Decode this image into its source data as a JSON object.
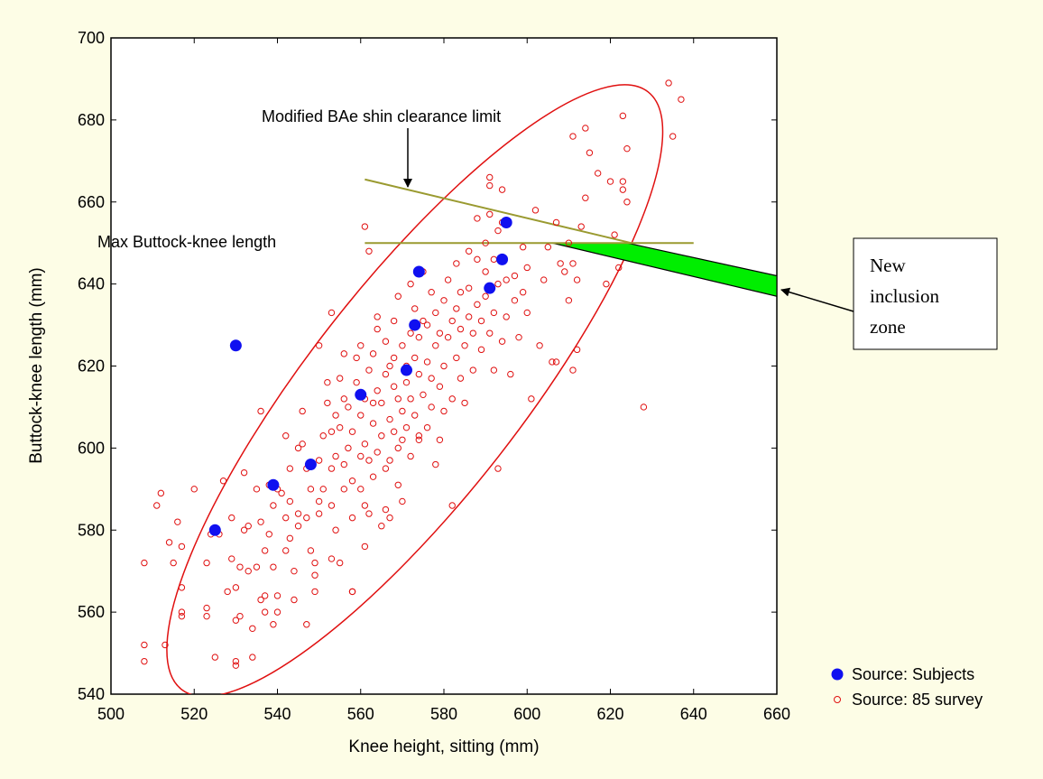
{
  "colors": {
    "background": "#fdfde6",
    "subjects": "#1010f0",
    "survey": "#e01010",
    "ellipse": "#e01010",
    "limit_lines": "#9a9a30",
    "inclusion_zone": "#00ee00"
  },
  "chart_data": {
    "type": "scatter",
    "title": "",
    "xlabel": "Knee height, sitting (mm)",
    "ylabel": "Buttock-knee length (mm)",
    "xlim": [
      500,
      660
    ],
    "ylim": [
      540,
      700
    ],
    "xticks": [
      500,
      520,
      540,
      560,
      580,
      600,
      620,
      640,
      660
    ],
    "yticks": [
      540,
      560,
      580,
      600,
      620,
      640,
      660,
      680,
      700
    ],
    "grid": false,
    "legend_position": "bottom-right",
    "series": [
      {
        "name": "Source: Subjects",
        "marker": "filled-circle",
        "points": [
          [
            525,
            580
          ],
          [
            530,
            625
          ],
          [
            539,
            591
          ],
          [
            548,
            596
          ],
          [
            560,
            613
          ],
          [
            571,
            619
          ],
          [
            573,
            630
          ],
          [
            574,
            643
          ],
          [
            591,
            639
          ],
          [
            594,
            646
          ],
          [
            595,
            655
          ]
        ]
      },
      {
        "name": "Source: 85 survey",
        "marker": "open-circle",
        "points": [
          [
            508,
            572
          ],
          [
            508,
            552
          ],
          [
            508,
            548
          ],
          [
            511,
            586
          ],
          [
            512,
            589
          ],
          [
            513,
            552
          ],
          [
            514,
            577
          ],
          [
            515,
            572
          ],
          [
            516,
            582
          ],
          [
            517,
            576
          ],
          [
            517,
            560
          ],
          [
            517,
            559
          ],
          [
            517,
            566
          ],
          [
            520,
            590
          ],
          [
            523,
            572
          ],
          [
            523,
            561
          ],
          [
            523,
            559
          ],
          [
            524,
            579
          ],
          [
            525,
            549
          ],
          [
            526,
            579
          ],
          [
            527,
            592
          ],
          [
            528,
            565
          ],
          [
            529,
            573
          ],
          [
            529,
            583
          ],
          [
            530,
            547
          ],
          [
            530,
            548
          ],
          [
            530,
            566
          ],
          [
            531,
            571
          ],
          [
            531,
            559
          ],
          [
            532,
            580
          ],
          [
            532,
            594
          ],
          [
            533,
            570
          ],
          [
            533,
            581
          ],
          [
            534,
            556
          ],
          [
            534,
            549
          ],
          [
            535,
            571
          ],
          [
            535,
            590
          ],
          [
            536,
            609
          ],
          [
            536,
            582
          ],
          [
            537,
            575
          ],
          [
            537,
            560
          ],
          [
            537,
            564
          ],
          [
            538,
            579
          ],
          [
            538,
            591
          ],
          [
            539,
            586
          ],
          [
            539,
            571
          ],
          [
            540,
            564
          ],
          [
            540,
            560
          ],
          [
            540,
            590
          ],
          [
            541,
            589
          ],
          [
            542,
            583
          ],
          [
            542,
            575
          ],
          [
            542,
            603
          ],
          [
            543,
            578
          ],
          [
            543,
            587
          ],
          [
            543,
            595
          ],
          [
            544,
            570
          ],
          [
            544,
            563
          ],
          [
            545,
            600
          ],
          [
            545,
            581
          ],
          [
            545,
            584
          ],
          [
            546,
            601
          ],
          [
            546,
            609
          ],
          [
            547,
            595
          ],
          [
            547,
            583
          ],
          [
            548,
            575
          ],
          [
            548,
            590
          ],
          [
            549,
            572
          ],
          [
            549,
            565
          ],
          [
            549,
            569
          ],
          [
            550,
            584
          ],
          [
            550,
            587
          ],
          [
            550,
            597
          ],
          [
            550,
            625
          ],
          [
            551,
            603
          ],
          [
            551,
            590
          ],
          [
            552,
            611
          ],
          [
            552,
            616
          ],
          [
            553,
            586
          ],
          [
            553,
            595
          ],
          [
            553,
            604
          ],
          [
            553,
            573
          ],
          [
            554,
            580
          ],
          [
            554,
            598
          ],
          [
            554,
            608
          ],
          [
            555,
            572
          ],
          [
            555,
            605
          ],
          [
            555,
            617
          ],
          [
            556,
            596
          ],
          [
            556,
            590
          ],
          [
            556,
            623
          ],
          [
            556,
            612
          ],
          [
            557,
            600
          ],
          [
            557,
            610
          ],
          [
            558,
            583
          ],
          [
            558,
            592
          ],
          [
            558,
            565
          ],
          [
            558,
            604
          ],
          [
            559,
            616
          ],
          [
            559,
            622
          ],
          [
            560,
            598
          ],
          [
            560,
            608
          ],
          [
            560,
            625
          ],
          [
            560,
            590
          ],
          [
            561,
            576
          ],
          [
            561,
            586
          ],
          [
            561,
            601
          ],
          [
            561,
            612
          ],
          [
            562,
            619
          ],
          [
            562,
            597
          ],
          [
            562,
            584
          ],
          [
            563,
            606
          ],
          [
            563,
            593
          ],
          [
            563,
            623
          ],
          [
            564,
            614
          ],
          [
            564,
            599
          ],
          [
            564,
            629
          ],
          [
            564,
            632
          ],
          [
            565,
            581
          ],
          [
            565,
            611
          ],
          [
            565,
            603
          ],
          [
            566,
            595
          ],
          [
            566,
            618
          ],
          [
            566,
            585
          ],
          [
            566,
            626
          ],
          [
            567,
            607
          ],
          [
            567,
            620
          ],
          [
            567,
            597
          ],
          [
            567,
            583
          ],
          [
            568,
            615
          ],
          [
            568,
            604
          ],
          [
            568,
            631
          ],
          [
            568,
            622
          ],
          [
            569,
            600
          ],
          [
            569,
            612
          ],
          [
            569,
            591
          ],
          [
            569,
            637
          ],
          [
            570,
            609
          ],
          [
            570,
            625
          ],
          [
            570,
            602
          ],
          [
            570,
            587
          ],
          [
            571,
            616
          ],
          [
            571,
            605
          ],
          [
            571,
            620
          ],
          [
            572,
            612
          ],
          [
            572,
            598
          ],
          [
            572,
            628
          ],
          [
            572,
            640
          ],
          [
            573,
            608
          ],
          [
            573,
            622
          ],
          [
            573,
            634
          ],
          [
            574,
            618
          ],
          [
            574,
            627
          ],
          [
            574,
            602
          ],
          [
            575,
            613
          ],
          [
            575,
            631
          ],
          [
            575,
            643
          ],
          [
            576,
            605
          ],
          [
            576,
            621
          ],
          [
            576,
            630
          ],
          [
            577,
            610
          ],
          [
            577,
            617
          ],
          [
            577,
            638
          ],
          [
            578,
            596
          ],
          [
            578,
            625
          ],
          [
            578,
            633
          ],
          [
            579,
            615
          ],
          [
            579,
            628
          ],
          [
            579,
            602
          ],
          [
            580,
            620
          ],
          [
            580,
            636
          ],
          [
            580,
            609
          ],
          [
            581,
            627
          ],
          [
            581,
            641
          ],
          [
            582,
            612
          ],
          [
            582,
            631
          ],
          [
            582,
            586
          ],
          [
            583,
            622
          ],
          [
            583,
            634
          ],
          [
            583,
            645
          ],
          [
            584,
            617
          ],
          [
            584,
            629
          ],
          [
            584,
            638
          ],
          [
            585,
            625
          ],
          [
            585,
            611
          ],
          [
            586,
            632
          ],
          [
            586,
            639
          ],
          [
            586,
            648
          ],
          [
            587,
            619
          ],
          [
            587,
            628
          ],
          [
            588,
            635
          ],
          [
            588,
            646
          ],
          [
            588,
            656
          ],
          [
            589,
            631
          ],
          [
            589,
            624
          ],
          [
            590,
            650
          ],
          [
            590,
            643
          ],
          [
            590,
            637
          ],
          [
            591,
            628
          ],
          [
            591,
            657
          ],
          [
            591,
            666
          ],
          [
            592,
            619
          ],
          [
            592,
            633
          ],
          [
            592,
            646
          ],
          [
            593,
            640
          ],
          [
            593,
            653
          ],
          [
            594,
            626
          ],
          [
            594,
            655
          ],
          [
            594,
            663
          ],
          [
            595,
            632
          ],
          [
            595,
            641
          ],
          [
            596,
            618
          ],
          [
            597,
            642
          ],
          [
            597,
            636
          ],
          [
            598,
            627
          ],
          [
            599,
            638
          ],
          [
            599,
            649
          ],
          [
            600,
            633
          ],
          [
            600,
            644
          ],
          [
            601,
            612
          ],
          [
            602,
            658
          ],
          [
            603,
            625
          ],
          [
            604,
            641
          ],
          [
            605,
            649
          ],
          [
            606,
            621
          ],
          [
            607,
            655
          ],
          [
            608,
            645
          ],
          [
            609,
            643
          ],
          [
            610,
            650
          ],
          [
            610,
            636
          ],
          [
            611,
            645
          ],
          [
            611,
            676
          ],
          [
            612,
            641
          ],
          [
            612,
            624
          ],
          [
            613,
            654
          ],
          [
            614,
            661
          ],
          [
            614,
            678
          ],
          [
            615,
            672
          ],
          [
            617,
            667
          ],
          [
            619,
            640
          ],
          [
            620,
            665
          ],
          [
            621,
            652
          ],
          [
            622,
            644
          ],
          [
            623,
            681
          ],
          [
            623,
            665
          ],
          [
            623,
            663
          ],
          [
            624,
            660
          ],
          [
            624,
            673
          ],
          [
            628,
            610
          ],
          [
            634,
            689
          ],
          [
            635,
            676
          ],
          [
            637,
            685
          ],
          [
            593,
            595
          ],
          [
            574,
            603
          ],
          [
            563,
            611
          ],
          [
            558,
            565
          ],
          [
            547,
            557
          ],
          [
            539,
            557
          ],
          [
            536,
            563
          ],
          [
            530,
            558
          ],
          [
            553,
            633
          ],
          [
            561,
            654
          ],
          [
            562,
            648
          ],
          [
            591,
            664
          ],
          [
            607,
            621
          ],
          [
            611,
            619
          ]
        ]
      }
    ],
    "ellipse": {
      "center": [
        573,
        614
      ],
      "rx_data": 63,
      "ry_data": 71,
      "rotation_deg": 0
    },
    "lines": [
      {
        "name": "Modified BAe shin clearance limit",
        "from": [
          561,
          665.5
        ],
        "to": [
          625,
          650
        ]
      },
      {
        "name": "Max Buttock-knee length",
        "from": [
          561,
          650
        ],
        "to": [
          640,
          650
        ]
      }
    ],
    "inclusion_zone": [
      [
        606,
        650
      ],
      [
        624,
        650
      ],
      [
        660,
        642
      ],
      [
        660,
        637
      ]
    ],
    "annotations": {
      "shin_limit": "Modified BAe shin clearance limit",
      "max_bk_length": "Max Buttock-knee length",
      "new_zone": [
        "New",
        "inclusion",
        "zone"
      ]
    }
  }
}
